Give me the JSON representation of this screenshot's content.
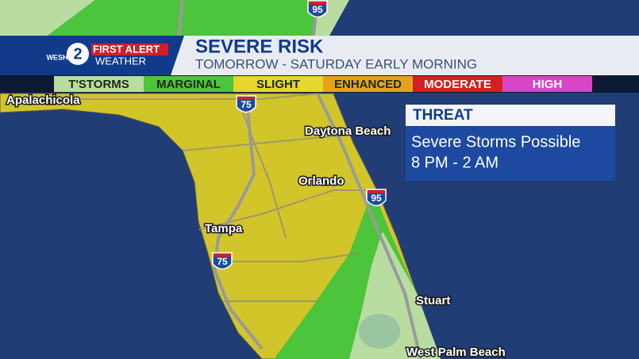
{
  "branding": {
    "logo": "WESH",
    "channel": "2",
    "brand": "FIRST ALERT",
    "sub": "WEATHER"
  },
  "header": {
    "title": "SEVERE RISK",
    "subtitle": "TOMORROW - SATURDAY EARLY MORNING"
  },
  "legend": [
    {
      "label": "T'STORMS",
      "color": "#b9dca0"
    },
    {
      "label": "MARGINAL",
      "color": "#4cc43c"
    },
    {
      "label": "SLIGHT",
      "color": "#e6d62e"
    },
    {
      "label": "ENHANCED",
      "color": "#e6a21e"
    },
    {
      "label": "MODERATE",
      "color": "#d32020"
    },
    {
      "label": "HIGH",
      "color": "#d846c8"
    }
  ],
  "threat": {
    "title": "THREAT",
    "lines": [
      "Severe Storms Possible",
      "8 PM - 2 AM"
    ]
  },
  "cities": [
    "Apalachicola",
    "Daytona Beach",
    "Orlando",
    "Tampa",
    "Stuart",
    "West Palm Beach"
  ],
  "highways": [
    "95",
    "75",
    "95",
    "75"
  ]
}
